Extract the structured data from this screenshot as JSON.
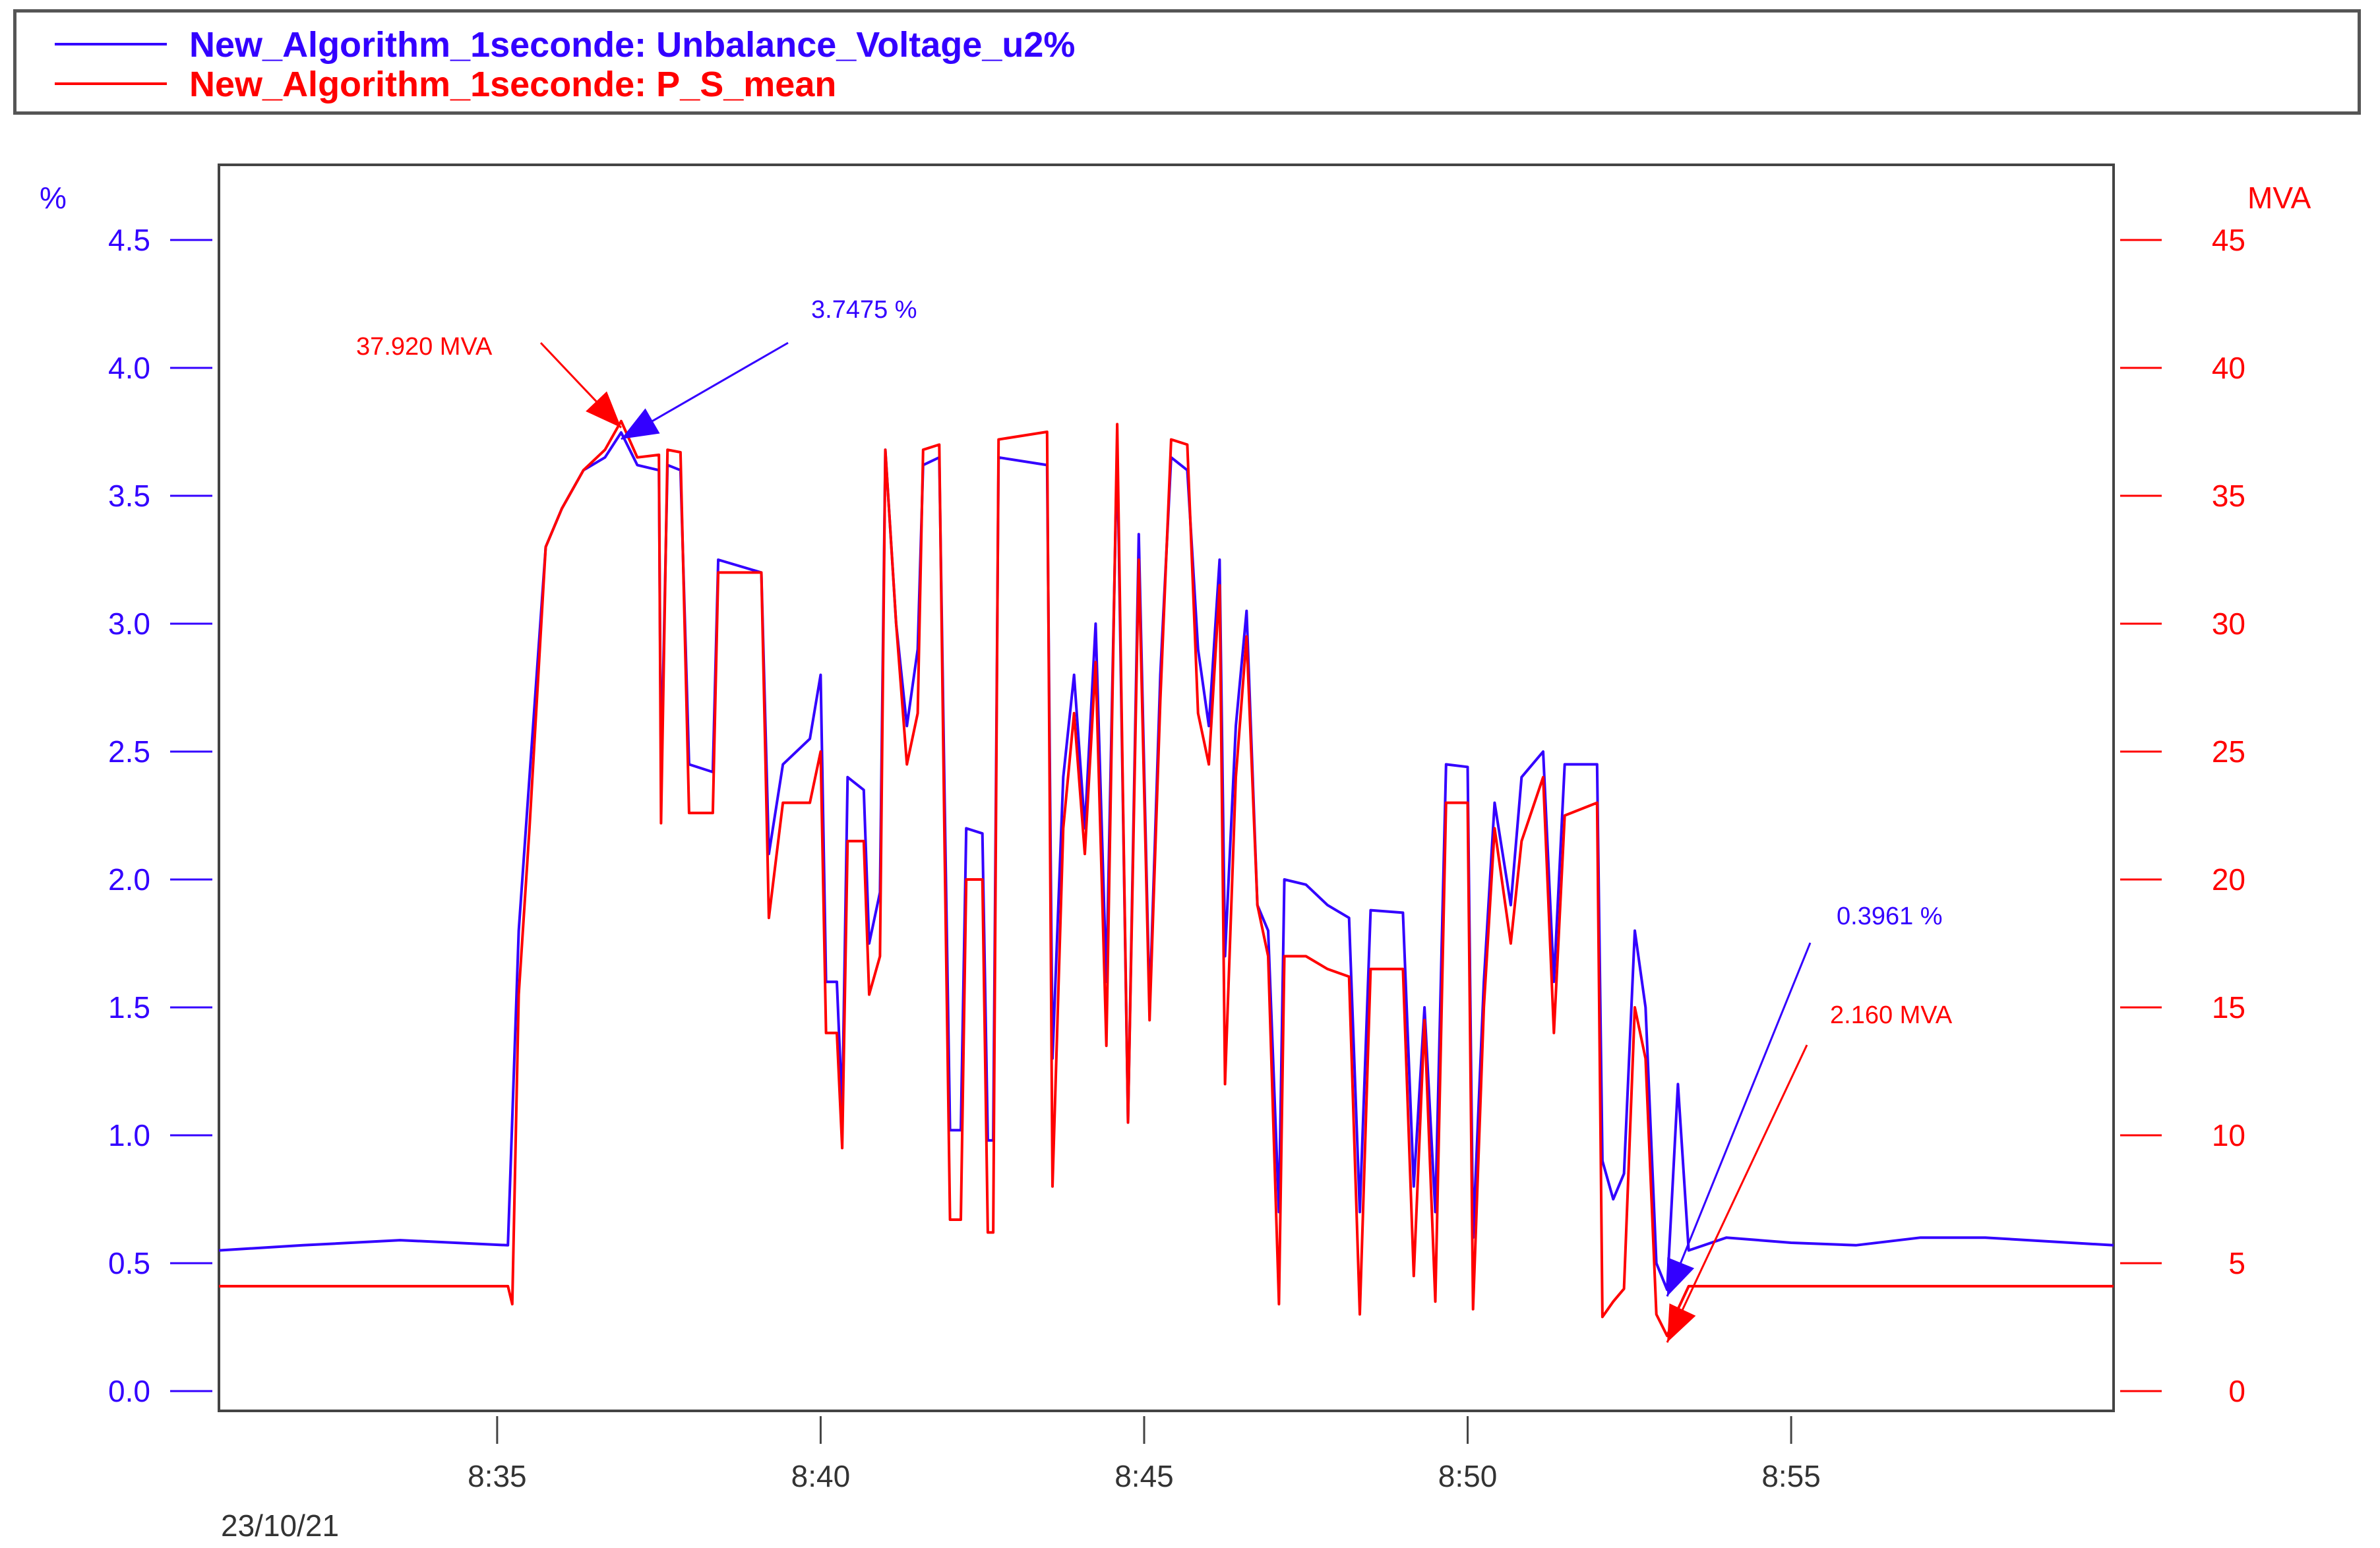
{
  "legend": {
    "items": [
      {
        "label": "New_Algorithm_1seconde: Unbalance_Voltage_u2%",
        "color": "#3300ff"
      },
      {
        "label": "New_Algorithm_1seconde: P_S_mean",
        "color": "#ff0000"
      }
    ]
  },
  "chart_data": {
    "type": "line",
    "date_label": "23/10/21",
    "x_range": [
      "8:30:42",
      "8:59:59"
    ],
    "x_ticks": [
      "8:35",
      "8:40",
      "8:45",
      "8:50",
      "8:55"
    ],
    "left_axis": {
      "unit": "%",
      "range": [
        0,
        4.7
      ],
      "ticks": [
        "0.0",
        "0.5",
        "1.0",
        "1.5",
        "2.0",
        "2.5",
        "3.0",
        "3.5",
        "4.0",
        "4.5"
      ],
      "color": "#3300ff"
    },
    "right_axis": {
      "unit": "MVA",
      "range": [
        0,
        47
      ],
      "ticks": [
        "0",
        "5",
        "10",
        "15",
        "20",
        "25",
        "30",
        "35",
        "40",
        "45"
      ],
      "color": "#ff0000"
    },
    "series": [
      {
        "name": "New_Algorithm_1seconde: Unbalance_Voltage_u2%",
        "axis": "left",
        "color": "#3300ff",
        "points": [
          [
            "8:30:42",
            0.55
          ],
          [
            "8:32:00",
            0.57
          ],
          [
            "8:33:30",
            0.59
          ],
          [
            "8:35:10",
            0.57
          ],
          [
            "8:35:20",
            1.8
          ],
          [
            "8:35:30",
            2.4
          ],
          [
            "8:35:45",
            3.3
          ],
          [
            "8:36:00",
            3.45
          ],
          [
            "8:36:20",
            3.6
          ],
          [
            "8:36:40",
            3.65
          ],
          [
            "8:36:55",
            3.7475
          ],
          [
            "8:37:10",
            3.62
          ],
          [
            "8:37:30",
            3.6
          ],
          [
            "8:37:32",
            2.4
          ],
          [
            "8:37:38",
            3.62
          ],
          [
            "8:37:50",
            3.6
          ],
          [
            "8:37:58",
            2.45
          ],
          [
            "8:38:20",
            2.42
          ],
          [
            "8:38:25",
            3.25
          ],
          [
            "8:39:05",
            3.2
          ],
          [
            "8:39:12",
            2.1
          ],
          [
            "8:39:25",
            2.45
          ],
          [
            "8:39:50",
            2.55
          ],
          [
            "8:40:00",
            2.8
          ],
          [
            "8:40:05",
            1.6
          ],
          [
            "8:40:15",
            1.6
          ],
          [
            "8:40:20",
            1.1
          ],
          [
            "8:40:25",
            2.4
          ],
          [
            "8:40:40",
            2.35
          ],
          [
            "8:40:45",
            1.75
          ],
          [
            "8:40:55",
            1.95
          ],
          [
            "8:41:00",
            3.68
          ],
          [
            "8:41:10",
            3.0
          ],
          [
            "8:41:20",
            2.6
          ],
          [
            "8:41:30",
            2.9
          ],
          [
            "8:41:35",
            3.62
          ],
          [
            "8:41:50",
            3.65
          ],
          [
            "8:41:55",
            2.3
          ],
          [
            "8:42:00",
            1.02
          ],
          [
            "8:42:10",
            1.02
          ],
          [
            "8:42:15",
            2.2
          ],
          [
            "8:42:30",
            2.18
          ],
          [
            "8:42:35",
            0.98
          ],
          [
            "8:42:40",
            0.98
          ],
          [
            "8:42:45",
            3.65
          ],
          [
            "8:43:30",
            3.62
          ],
          [
            "8:43:35",
            1.3
          ],
          [
            "8:43:45",
            2.4
          ],
          [
            "8:43:55",
            2.8
          ],
          [
            "8:44:05",
            2.2
          ],
          [
            "8:44:15",
            3.0
          ],
          [
            "8:44:25",
            1.6
          ],
          [
            "8:44:35",
            3.7
          ],
          [
            "8:44:45",
            1.05
          ],
          [
            "8:44:55",
            3.35
          ],
          [
            "8:45:05",
            1.5
          ],
          [
            "8:45:15",
            2.8
          ],
          [
            "8:45:25",
            3.65
          ],
          [
            "8:45:40",
            3.6
          ],
          [
            "8:45:50",
            2.9
          ],
          [
            "8:46:00",
            2.6
          ],
          [
            "8:46:10",
            3.25
          ],
          [
            "8:46:15",
            1.7
          ],
          [
            "8:46:25",
            2.6
          ],
          [
            "8:46:35",
            3.05
          ],
          [
            "8:46:45",
            1.9
          ],
          [
            "8:46:55",
            1.8
          ],
          [
            "8:47:05",
            0.7
          ],
          [
            "8:47:10",
            2.0
          ],
          [
            "8:47:30",
            1.98
          ],
          [
            "8:47:50",
            1.9
          ],
          [
            "8:48:10",
            1.85
          ],
          [
            "8:48:20",
            0.7
          ],
          [
            "8:48:30",
            1.88
          ],
          [
            "8:49:00",
            1.87
          ],
          [
            "8:49:10",
            0.8
          ],
          [
            "8:49:20",
            1.5
          ],
          [
            "8:49:30",
            0.7
          ],
          [
            "8:49:40",
            2.45
          ],
          [
            "8:50:00",
            2.44
          ],
          [
            "8:50:05",
            0.6
          ],
          [
            "8:50:15",
            1.6
          ],
          [
            "8:50:25",
            2.3
          ],
          [
            "8:50:40",
            1.9
          ],
          [
            "8:50:50",
            2.4
          ],
          [
            "8:51:10",
            2.5
          ],
          [
            "8:51:20",
            1.6
          ],
          [
            "8:51:30",
            2.45
          ],
          [
            "8:52:00",
            2.45
          ],
          [
            "8:52:05",
            0.9
          ],
          [
            "8:52:15",
            0.75
          ],
          [
            "8:52:25",
            0.85
          ],
          [
            "8:52:35",
            1.8
          ],
          [
            "8:52:45",
            1.5
          ],
          [
            "8:52:55",
            0.5
          ],
          [
            "8:53:05",
            0.3961
          ],
          [
            "8:53:15",
            1.2
          ],
          [
            "8:53:25",
            0.55
          ],
          [
            "8:54:00",
            0.6
          ],
          [
            "8:55:00",
            0.58
          ],
          [
            "8:56:00",
            0.57
          ],
          [
            "8:57:00",
            0.6
          ],
          [
            "8:58:00",
            0.6
          ],
          [
            "8:59:59",
            0.57
          ]
        ]
      },
      {
        "name": "New_Algorithm_1seconde: P_S_mean",
        "axis": "right",
        "color": "#ff0000",
        "points": [
          [
            "8:30:42",
            4.1
          ],
          [
            "8:35:10",
            4.1
          ],
          [
            "8:35:14",
            3.4
          ],
          [
            "8:35:20",
            15.5
          ],
          [
            "8:35:30",
            22.0
          ],
          [
            "8:35:45",
            33.0
          ],
          [
            "8:36:00",
            34.5
          ],
          [
            "8:36:20",
            36.0
          ],
          [
            "8:36:40",
            36.8
          ],
          [
            "8:36:55",
            37.92
          ],
          [
            "8:37:10",
            36.5
          ],
          [
            "8:37:30",
            36.6
          ],
          [
            "8:37:32",
            22.2
          ],
          [
            "8:37:38",
            36.8
          ],
          [
            "8:37:50",
            36.7
          ],
          [
            "8:37:58",
            22.6
          ],
          [
            "8:38:20",
            22.6
          ],
          [
            "8:38:25",
            32.0
          ],
          [
            "8:39:05",
            32.0
          ],
          [
            "8:39:12",
            18.5
          ],
          [
            "8:39:25",
            23.0
          ],
          [
            "8:39:50",
            23.0
          ],
          [
            "8:40:00",
            25.0
          ],
          [
            "8:40:05",
            14.0
          ],
          [
            "8:40:15",
            14.0
          ],
          [
            "8:40:20",
            9.5
          ],
          [
            "8:40:25",
            21.5
          ],
          [
            "8:40:40",
            21.5
          ],
          [
            "8:40:45",
            15.5
          ],
          [
            "8:40:55",
            17.0
          ],
          [
            "8:41:00",
            36.8
          ],
          [
            "8:41:10",
            30.0
          ],
          [
            "8:41:20",
            24.5
          ],
          [
            "8:41:30",
            26.5
          ],
          [
            "8:41:35",
            36.8
          ],
          [
            "8:41:50",
            37.0
          ],
          [
            "8:41:55",
            21.0
          ],
          [
            "8:42:00",
            6.7
          ],
          [
            "8:42:10",
            6.7
          ],
          [
            "8:42:15",
            20.0
          ],
          [
            "8:42:30",
            20.0
          ],
          [
            "8:42:35",
            6.2
          ],
          [
            "8:42:40",
            6.2
          ],
          [
            "8:42:45",
            37.2
          ],
          [
            "8:43:30",
            37.5
          ],
          [
            "8:43:35",
            8.0
          ],
          [
            "8:43:45",
            22.0
          ],
          [
            "8:43:55",
            26.5
          ],
          [
            "8:44:05",
            21.0
          ],
          [
            "8:44:15",
            28.5
          ],
          [
            "8:44:25",
            13.5
          ],
          [
            "8:44:35",
            37.8
          ],
          [
            "8:44:45",
            10.5
          ],
          [
            "8:44:55",
            32.5
          ],
          [
            "8:45:05",
            14.5
          ],
          [
            "8:45:15",
            27.0
          ],
          [
            "8:45:25",
            37.2
          ],
          [
            "8:45:40",
            37.0
          ],
          [
            "8:45:50",
            26.5
          ],
          [
            "8:46:00",
            24.5
          ],
          [
            "8:46:10",
            31.5
          ],
          [
            "8:46:15",
            12.0
          ],
          [
            "8:46:25",
            24.0
          ],
          [
            "8:46:35",
            29.5
          ],
          [
            "8:46:45",
            19.0
          ],
          [
            "8:46:55",
            17.0
          ],
          [
            "8:47:05",
            3.4
          ],
          [
            "8:47:10",
            17.0
          ],
          [
            "8:47:30",
            17.0
          ],
          [
            "8:47:50",
            16.5
          ],
          [
            "8:48:10",
            16.2
          ],
          [
            "8:48:20",
            3.0
          ],
          [
            "8:48:30",
            16.5
          ],
          [
            "8:49:00",
            16.5
          ],
          [
            "8:49:10",
            4.5
          ],
          [
            "8:49:20",
            14.5
          ],
          [
            "8:49:30",
            3.5
          ],
          [
            "8:49:40",
            23.0
          ],
          [
            "8:50:00",
            23.0
          ],
          [
            "8:50:05",
            3.2
          ],
          [
            "8:50:15",
            15.0
          ],
          [
            "8:50:25",
            22.0
          ],
          [
            "8:50:40",
            17.5
          ],
          [
            "8:50:50",
            21.5
          ],
          [
            "8:51:10",
            24.0
          ],
          [
            "8:51:20",
            14.0
          ],
          [
            "8:51:30",
            22.5
          ],
          [
            "8:52:00",
            23.0
          ],
          [
            "8:52:05",
            2.9
          ],
          [
            "8:52:15",
            3.5
          ],
          [
            "8:52:25",
            4.0
          ],
          [
            "8:52:35",
            15.0
          ],
          [
            "8:52:45",
            13.0
          ],
          [
            "8:52:55",
            3.0
          ],
          [
            "8:53:05",
            2.16
          ],
          [
            "8:53:15",
            3.2
          ],
          [
            "8:53:25",
            4.1
          ],
          [
            "8:54:00",
            4.1
          ],
          [
            "8:55:00",
            4.1
          ],
          [
            "8:57:00",
            4.1
          ],
          [
            "8:59:59",
            4.1
          ]
        ]
      }
    ],
    "annotations": [
      {
        "text": "37.920 MVA",
        "color": "#ff0000",
        "at": [
          "8:36:55",
          37.92
        ],
        "axis": "right"
      },
      {
        "text": "3.7475 %",
        "color": "#3300ff",
        "at": [
          "8:36:55",
          3.7475
        ],
        "axis": "left"
      },
      {
        "text": "0.3961 %",
        "color": "#3300ff",
        "at": [
          "8:53:05",
          0.3961
        ],
        "axis": "left"
      },
      {
        "text": "2.160 MVA",
        "color": "#ff0000",
        "at": [
          "8:53:05",
          2.16
        ],
        "axis": "right"
      }
    ]
  }
}
